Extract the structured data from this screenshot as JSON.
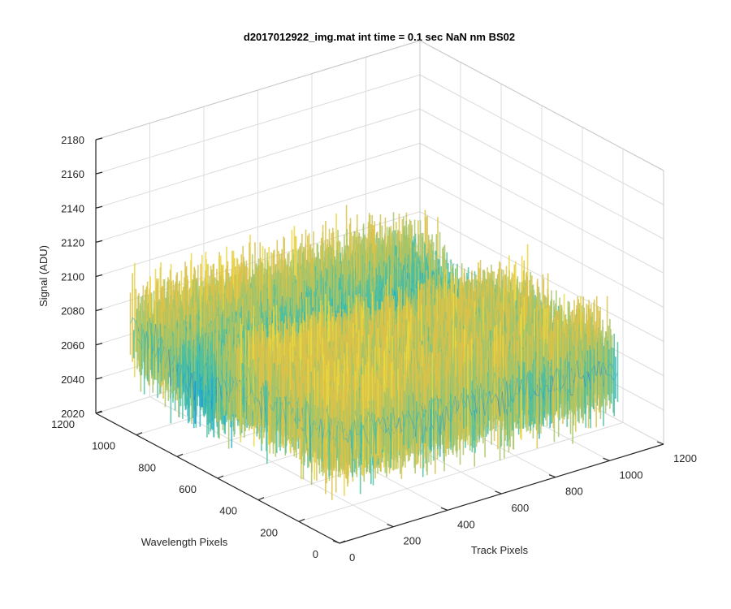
{
  "chart_data": {
    "type": "surface",
    "title": "d2017012922_img.mat int time = 0.1 sec  NaN nm BS02",
    "xlabel": "Track Pixels",
    "ylabel": "Wavelength Pixels",
    "zlabel": "Signal (ADU)",
    "xlim": [
      0,
      1200
    ],
    "ylim": [
      0,
      1200
    ],
    "zlim": [
      2020,
      2180
    ],
    "x_ticks": [
      0,
      200,
      400,
      600,
      800,
      1000,
      1200
    ],
    "y_ticks": [
      0,
      200,
      400,
      600,
      800,
      1000,
      1200
    ],
    "z_ticks": [
      2020,
      2040,
      2060,
      2080,
      2100,
      2120,
      2140,
      2160,
      2180
    ],
    "grid": true,
    "colormap": "parula",
    "colors": [
      "#0f5fd6",
      "#1a8fe3",
      "#24b0c8",
      "#4ec0a0",
      "#a8c466",
      "#d9c24a",
      "#ebd63d"
    ],
    "data_summary": {
      "x_range": [
        0,
        1030
      ],
      "y_range": [
        0,
        1030
      ],
      "z_typical_range": [
        2040,
        2120
      ],
      "z_approx_mean": 2080,
      "z_peak_max": 2145,
      "z_dip_min": 2025
    }
  }
}
